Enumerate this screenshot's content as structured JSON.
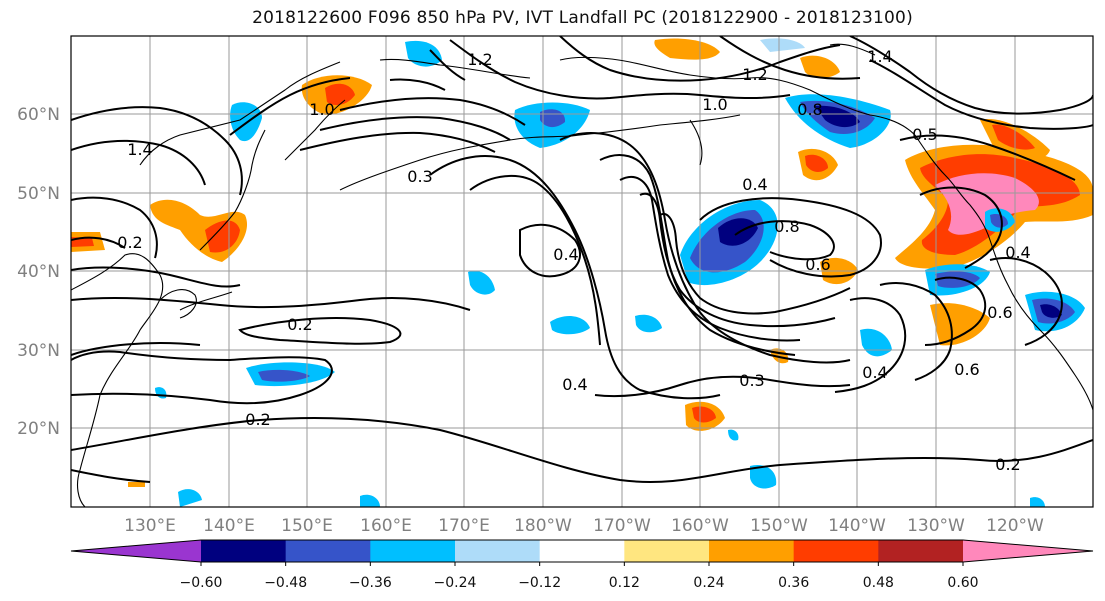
{
  "title": "2018122600 F096 850 hPa PV, IVT Landfall PC (2018122900 - 2018123100)",
  "lat_labels": [
    "60°N",
    "50°N",
    "40°N",
    "30°N",
    "20°N"
  ],
  "lon_labels": [
    "130°E",
    "140°E",
    "150°E",
    "160°E",
    "170°E",
    "180°W",
    "170°W",
    "160°W",
    "150°W",
    "140°W",
    "130°W",
    "120°W"
  ],
  "colorbar": {
    "colors": [
      "#9a35d0",
      "#00007f",
      "#3654c9",
      "#00bfff",
      "#aedcf9",
      "#ffffff",
      "#ffe680",
      "#ff9f00",
      "#ff3d00",
      "#b22222",
      "#ff88bb"
    ],
    "ticks": [
      "−0.60",
      "−0.48",
      "−0.36",
      "−0.24",
      "−0.12",
      "0.12",
      "0.24",
      "0.36",
      "0.48",
      "0.60"
    ]
  },
  "contour_labels": [
    {
      "text": "1.2"
    },
    {
      "text": "1.4"
    },
    {
      "text": "1.0"
    },
    {
      "text": "1.2"
    },
    {
      "text": "0.8"
    },
    {
      "text": "0.5"
    },
    {
      "text": "0.3"
    },
    {
      "text": "0.4"
    },
    {
      "text": "0.8"
    },
    {
      "text": "0.4"
    },
    {
      "text": "0.6"
    },
    {
      "text": "0.2"
    },
    {
      "text": "0.4"
    },
    {
      "text": "0.3"
    },
    {
      "text": "0.2"
    },
    {
      "text": "0.4"
    },
    {
      "text": "0.6"
    },
    {
      "text": "0.6"
    },
    {
      "text": "0.2"
    },
    {
      "text": "1.4"
    },
    {
      "text": "1.0"
    },
    {
      "text": "0.4"
    },
    {
      "text": "0.2"
    }
  ]
}
